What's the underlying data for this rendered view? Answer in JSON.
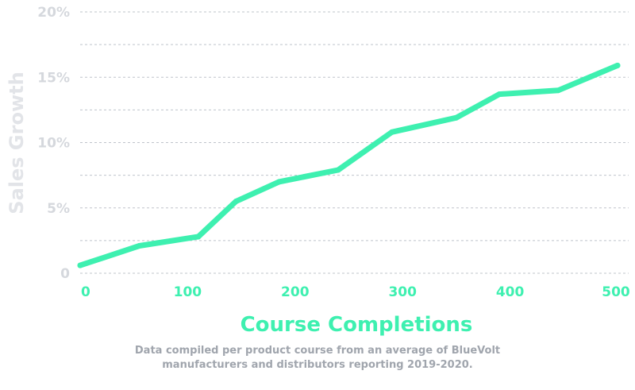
{
  "colors": {
    "line": "#3ef0b0",
    "axis_label": "#e2e4e8",
    "ytick": "#d5d8dd",
    "xtick": "#3ef0b0",
    "grid": "#bfc4cb",
    "caption": "#a0a5ad"
  },
  "chart_data": {
    "type": "line",
    "title": "",
    "xlabel": "Course Completions",
    "ylabel": "Sales Growth",
    "xlim": [
      0,
      500
    ],
    "ylim": [
      0,
      20
    ],
    "grid": true,
    "grid_style": "dashed-horizontal",
    "x_ticks": [
      0,
      100,
      200,
      300,
      400,
      500
    ],
    "x_tick_labels": [
      "0",
      "100",
      "200",
      "300",
      "400",
      "500"
    ],
    "y_ticks": [
      0,
      5,
      10,
      15,
      20
    ],
    "y_tick_labels": [
      "0",
      "5%",
      "10%",
      "15%",
      "20%"
    ],
    "series": [
      {
        "x": [
          0,
          55,
          110,
          145,
          185,
          240,
          290,
          350,
          390,
          445,
          500
        ],
        "values": [
          0.6,
          2.1,
          2.8,
          5.5,
          7.0,
          7.9,
          10.8,
          11.9,
          13.7,
          14.0,
          15.9
        ]
      }
    ]
  },
  "caption": {
    "line1": "Data compiled per product course from an average of BlueVolt",
    "line2": "manufacturers and distributors reporting 2019-2020."
  }
}
